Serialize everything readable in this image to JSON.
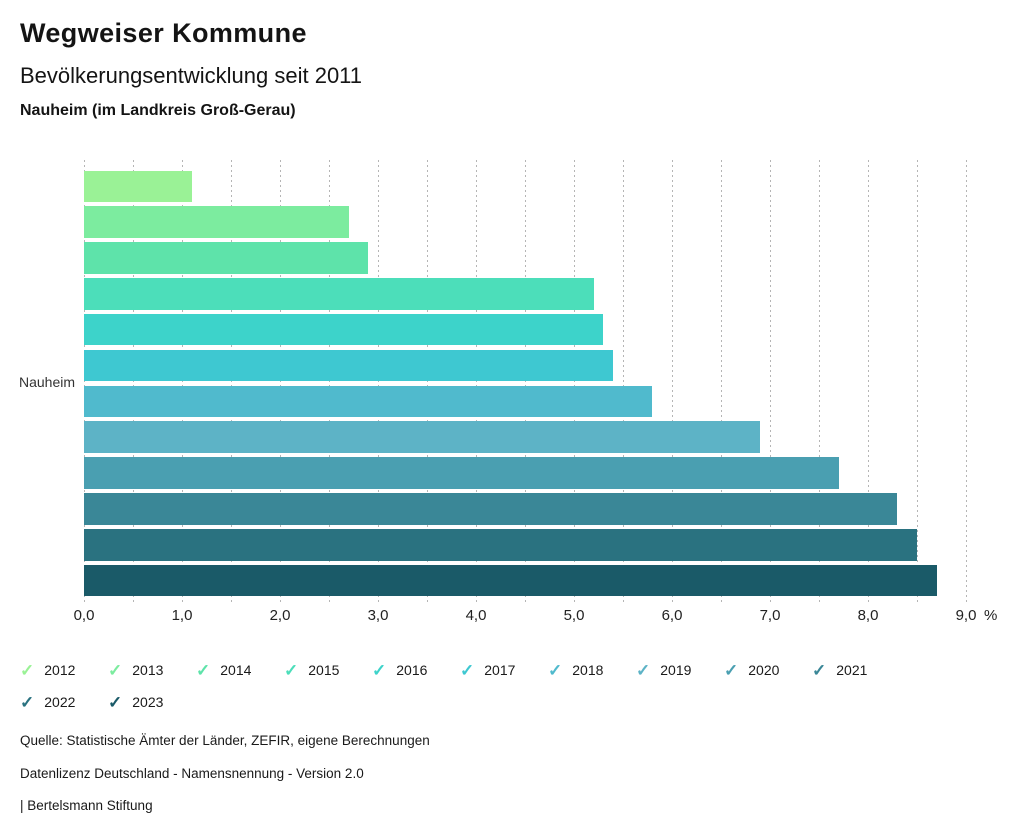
{
  "header": {
    "title": "Wegweiser Kommune",
    "subtitle": "Bevölkerungsentwicklung seit 2011",
    "location": "Nauheim (im Landkreis Groß-Gerau)"
  },
  "chart_data": {
    "type": "bar",
    "orientation": "horizontal",
    "title": "Bevölkerungsentwicklung seit 2011",
    "group_label": "Nauheim",
    "categories": [
      "2012",
      "2013",
      "2014",
      "2015",
      "2016",
      "2017",
      "2018",
      "2019",
      "2020",
      "2021",
      "2022",
      "2023"
    ],
    "values": [
      1.1,
      2.7,
      2.9,
      5.2,
      5.3,
      5.4,
      5.8,
      6.9,
      7.7,
      8.3,
      8.5,
      8.7
    ],
    "unit": "%",
    "colors": [
      "#9af296",
      "#7cec9f",
      "#5ee3aa",
      "#4cdeba",
      "#3dd3ca",
      "#3ec8d1",
      "#50bacd",
      "#5db3c6",
      "#4a9fb1",
      "#3a8797",
      "#2a7280",
      "#1a5a68"
    ],
    "xlim": [
      0.0,
      9.0
    ],
    "x_tick_step": 1.0,
    "grid_step": 0.5,
    "grid_style": "dotted-vertical",
    "x_ticks": [
      "0,0",
      "1,0",
      "2,0",
      "3,0",
      "4,0",
      "5,0",
      "6,0",
      "7,0",
      "8,0",
      "9,0"
    ],
    "x_unit_label": "%",
    "legend_position": "bottom"
  },
  "legend": {
    "check_glyph": "✓"
  },
  "footer": {
    "source": "Quelle: Statistische Ämter der Länder, ZEFIR, eigene Berechnungen",
    "license": "Datenlizenz Deutschland - Namensnennung - Version 2.0",
    "attribution": "| Bertelsmann Stiftung"
  }
}
